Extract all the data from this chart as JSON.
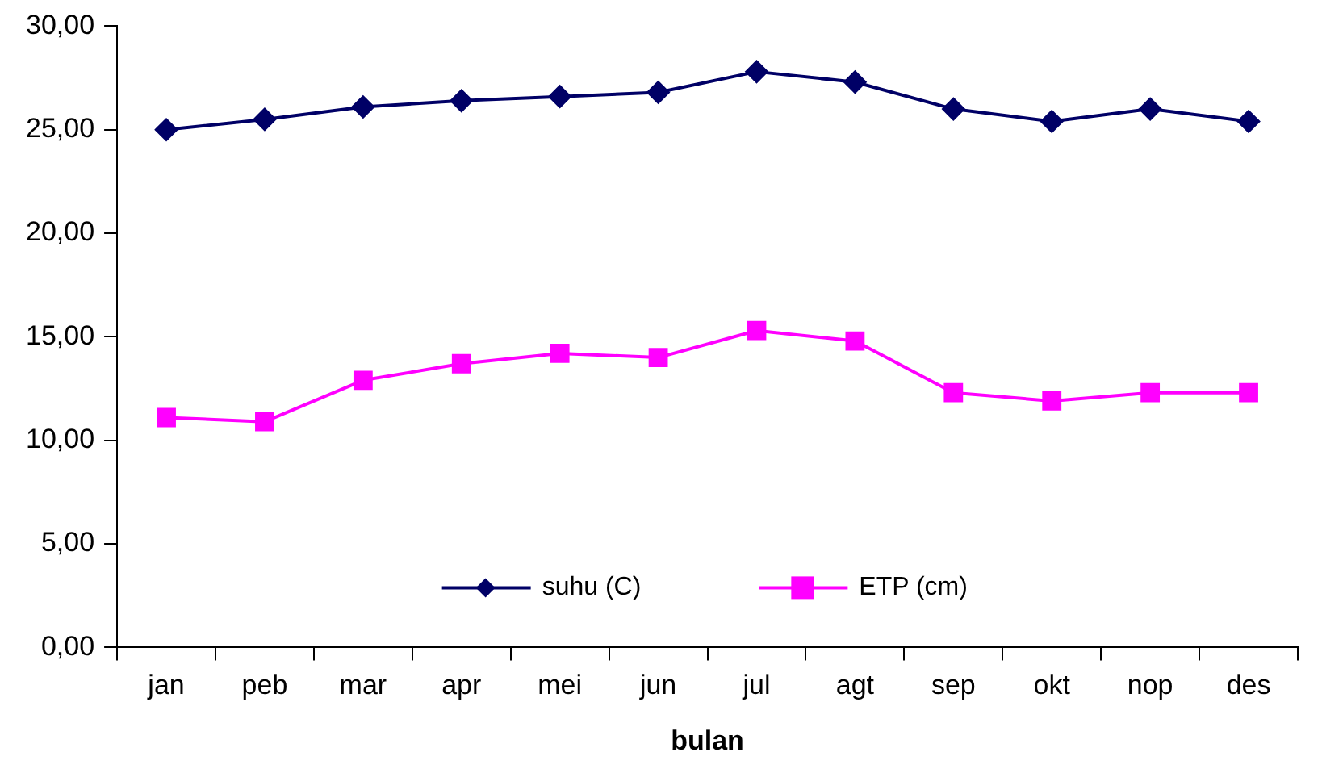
{
  "chart_data": {
    "type": "line",
    "xlabel": "bulan",
    "categories": [
      "jan",
      "peb",
      "mar",
      "apr",
      "mei",
      "jun",
      "jul",
      "agt",
      "sep",
      "okt",
      "nop",
      "des"
    ],
    "series": [
      {
        "name": "suhu (C)",
        "color": "#000066",
        "marker": "diamond",
        "values": [
          25.0,
          25.5,
          26.1,
          26.4,
          26.6,
          26.8,
          27.8,
          27.3,
          26.0,
          25.4,
          26.0,
          25.4
        ]
      },
      {
        "name": "ETP (cm)",
        "color": "#ff00ff",
        "marker": "square",
        "values": [
          11.1,
          10.9,
          12.9,
          13.7,
          14.2,
          14.0,
          15.3,
          14.8,
          12.3,
          11.9,
          12.3,
          12.3
        ]
      }
    ],
    "ylim": [
      0,
      30
    ],
    "yticks": [
      {
        "value": 0,
        "label": "0,00"
      },
      {
        "value": 5,
        "label": "5,00"
      },
      {
        "value": 10,
        "label": "10,00"
      },
      {
        "value": 15,
        "label": "15,00"
      },
      {
        "value": 20,
        "label": "20,00"
      },
      {
        "value": 25,
        "label": "25,00"
      },
      {
        "value": 30,
        "label": "30,00"
      }
    ],
    "grid": false,
    "legend": "bottom",
    "line_style": "solid"
  }
}
